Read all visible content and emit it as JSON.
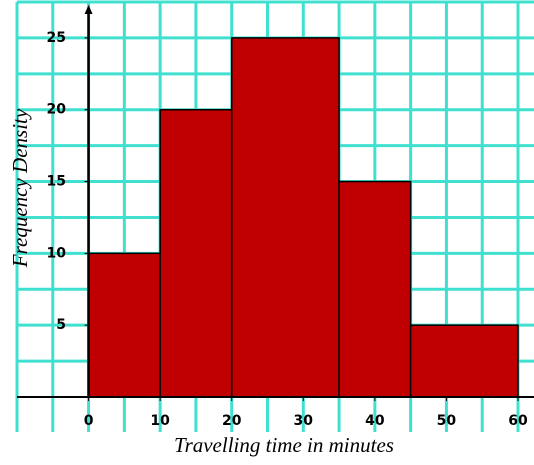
{
  "chart_data": {
    "type": "histogram",
    "x_label": "Travelling time in minutes",
    "y_label": "Frequency Density",
    "bins": [
      0,
      10,
      20,
      35,
      45,
      60
    ],
    "values": [
      10,
      20,
      25,
      15,
      5
    ],
    "color": "#c00000",
    "grid_color": "#40e0d0",
    "xlim": [
      -10,
      60
    ],
    "ylim": [
      0,
      27.5
    ],
    "xticks": [
      0,
      10,
      20,
      30,
      40,
      50,
      60
    ],
    "yticks": [
      5,
      10,
      15,
      20,
      25
    ],
    "xgrid": [
      -10,
      -5,
      0,
      5,
      10,
      15,
      20,
      25,
      30,
      35,
      40,
      45,
      50,
      55,
      60
    ],
    "ygrid": [
      2.5,
      5,
      7.5,
      10,
      12.5,
      15,
      17.5,
      20,
      22.5,
      25,
      27.5
    ],
    "grid": true
  }
}
